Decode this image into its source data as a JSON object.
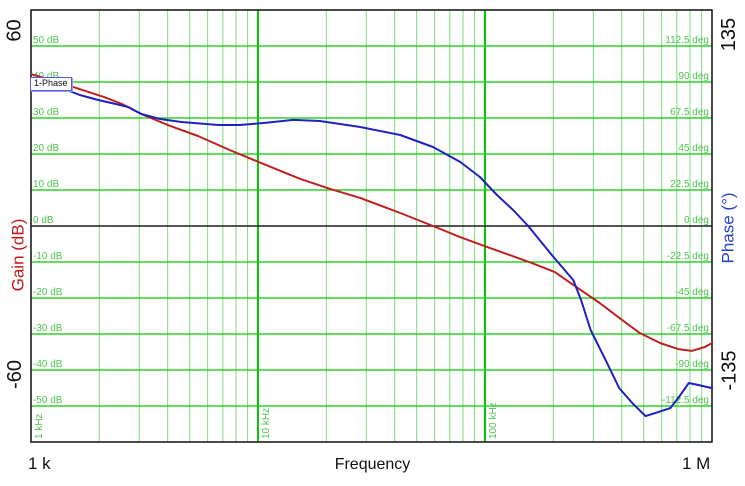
{
  "chart_data": {
    "type": "line",
    "title": "",
    "xlabel": "Frequency",
    "x_axis": {
      "scale": "log",
      "min_hz": 1000,
      "max_hz": 1000000,
      "start_label": "1 k",
      "end_label": "1 M",
      "decade_labels": [
        {
          "hz": 1000,
          "label": "1 kHz"
        },
        {
          "hz": 10000,
          "label": "10 kHz"
        },
        {
          "hz": 100000,
          "label": "100 kHz"
        }
      ]
    },
    "left_axis": {
      "title": "Gain (dB)",
      "min": -60,
      "max": 60,
      "corner_top": "60",
      "corner_bottom": "-60"
    },
    "right_axis": {
      "title": "Phase (°)",
      "min": -135,
      "max": 135,
      "corner_top": "135",
      "corner_bottom": "-135"
    },
    "h_grid": [
      {
        "gain": 50,
        "db_label": "50 dB",
        "deg_label": "112.5 deg"
      },
      {
        "gain": 40,
        "db_label": "40 dB",
        "deg_label": "90 deg"
      },
      {
        "gain": 30,
        "db_label": "30 dB",
        "deg_label": "67.5 deg"
      },
      {
        "gain": 20,
        "db_label": "20 dB",
        "deg_label": "45 deg"
      },
      {
        "gain": 10,
        "db_label": "10 dB",
        "deg_label": "22.5 deg"
      },
      {
        "gain": 0,
        "db_label": "0 dB",
        "deg_label": "0 deg"
      },
      {
        "gain": -10,
        "db_label": "-10 dB",
        "deg_label": "-22.5 deg"
      },
      {
        "gain": -20,
        "db_label": "-20 dB",
        "deg_label": "-45 deg"
      },
      {
        "gain": -30,
        "db_label": "-30 dB",
        "deg_label": "-67.5 deg"
      },
      {
        "gain": -40,
        "db_label": "-40 dB",
        "deg_label": "-90 deg"
      },
      {
        "gain": -50,
        "db_label": "-50 dB",
        "deg_label": "-112.5 deg"
      }
    ],
    "annotation": {
      "label": "1-Phase"
    },
    "series": [
      {
        "name": "Gain",
        "axis": "left",
        "color": "#c02020",
        "points": [
          [
            1000,
            42.2
          ],
          [
            1440,
            39.2
          ],
          [
            2100,
            35.8
          ],
          [
            2520,
            33.9
          ],
          [
            3060,
            31.1
          ],
          [
            4100,
            27.8
          ],
          [
            5440,
            25.0
          ],
          [
            7500,
            21.1
          ],
          [
            10600,
            17.2
          ],
          [
            15300,
            13.1
          ],
          [
            20800,
            10.3
          ],
          [
            28200,
            7.8
          ],
          [
            42300,
            3.6
          ],
          [
            59000,
            0.0
          ],
          [
            77800,
            -3.1
          ],
          [
            102000,
            -5.8
          ],
          [
            129000,
            -8.1
          ],
          [
            161000,
            -10.3
          ],
          [
            203000,
            -12.8
          ],
          [
            256000,
            -17.2
          ],
          [
            320000,
            -21.4
          ],
          [
            392000,
            -25.6
          ],
          [
            480000,
            -29.7
          ],
          [
            590000,
            -32.5
          ],
          [
            710000,
            -34.2
          ],
          [
            815000,
            -34.7
          ],
          [
            930000,
            -33.6
          ],
          [
            1000000,
            -32.5
          ]
        ]
      },
      {
        "name": "Phase",
        "axis": "right",
        "color": "#2020c0",
        "points": [
          [
            1000,
            90.0
          ],
          [
            1210,
            87.5
          ],
          [
            1400,
            85.6
          ],
          [
            1640,
            81.9
          ],
          [
            1970,
            78.8
          ],
          [
            2350,
            76.3
          ],
          [
            2680,
            74.4
          ],
          [
            3060,
            70.0
          ],
          [
            3700,
            66.9
          ],
          [
            4600,
            65.0
          ],
          [
            6700,
            63.1
          ],
          [
            8300,
            63.1
          ],
          [
            10600,
            64.4
          ],
          [
            14300,
            66.3
          ],
          [
            18700,
            65.6
          ],
          [
            28200,
            61.9
          ],
          [
            42300,
            56.9
          ],
          [
            59000,
            49.4
          ],
          [
            77800,
            40.0
          ],
          [
            95000,
            30.6
          ],
          [
            113000,
            19.4
          ],
          [
            133000,
            10.0
          ],
          [
            155000,
            0.0
          ],
          [
            197000,
            -18.1
          ],
          [
            245000,
            -33.8
          ],
          [
            265000,
            -46.3
          ],
          [
            292000,
            -65.0
          ],
          [
            340000,
            -83.8
          ],
          [
            390000,
            -101.3
          ],
          [
            450000,
            -111.3
          ],
          [
            510000,
            -118.8
          ],
          [
            580000,
            -116.3
          ],
          [
            655000,
            -113.8
          ],
          [
            720000,
            -106.3
          ],
          [
            790000,
            -98.1
          ],
          [
            870000,
            -99.4
          ],
          [
            1000000,
            -101.3
          ]
        ]
      }
    ],
    "colors": {
      "grid_major": "#00cc00",
      "grid_minor": "#7ddd7d",
      "grid_label": "#4fc24f",
      "axis_black": "#1c1c1c",
      "background": "#ffffff",
      "gain_curve": "#c02020",
      "phase_curve": "#2020c0"
    }
  }
}
